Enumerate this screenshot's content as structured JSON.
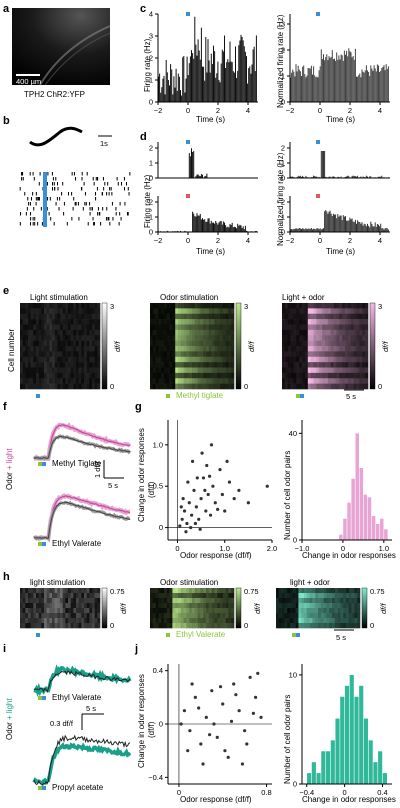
{
  "panels": {
    "a": "a",
    "b": "b",
    "c": "c",
    "d": "d",
    "e": "e",
    "f": "f",
    "g": "g",
    "h": "h",
    "i": "i",
    "j": "j"
  },
  "a": {
    "scale_bar": "400 µm",
    "caption": "TPH2 ChR2:YFP"
  },
  "b": {
    "scale_bar": "1s"
  },
  "c": {
    "left_ylabel": "Firing rate (Hz)",
    "right_ylabel": "Normalized firing rate (Hz)",
    "xlabel": "Time (s)",
    "left_yticks": [
      "0",
      "1",
      "2",
      "3",
      "4"
    ],
    "right_yticks": [
      "0",
      "1",
      "2",
      "3"
    ],
    "xticks": [
      "−2",
      "0",
      "2",
      "4"
    ]
  },
  "d": {
    "left_ylabel": "Firing rate (Hz)",
    "right_ylabel": "Normalized firing rate (Hz)",
    "xlabel": "Time (s)",
    "yticks_top": [
      "0",
      "1",
      "2"
    ],
    "yticks_bottom": [
      "0",
      "1",
      "2"
    ],
    "xticks": [
      "−2",
      "0",
      "2",
      "4"
    ]
  },
  "e": {
    "ylabel": "Cell number",
    "titles": [
      "Light stimulation",
      "Odor stimulation",
      "Light + odor"
    ],
    "odor": "Methyl tiglate",
    "cb_max": "3",
    "cb_min": "0",
    "cb_label": "df/f",
    "scale": "5 s"
  },
  "f": {
    "side_label_odor": "Odor",
    "side_label_plus": " + light",
    "odors": [
      "Methyl Tiglate",
      "Ethyl Valerate"
    ],
    "scale_y": "1 df/f",
    "scale_x": "5 s"
  },
  "g": {
    "scatter": {
      "ylabel_1": "Change in odor responses",
      "ylabel_2": "(df/f)",
      "xlabel": "Odor response (df/f)",
      "xticks": [
        "0",
        "1.0",
        "2.0"
      ],
      "yticks": [
        "0",
        "0.5",
        "1.0"
      ]
    },
    "hist": {
      "ylabel": "Number of cell odor pairs",
      "xlabel": "Change in odor responses",
      "xticks": [
        "−1.0",
        "0",
        "1.0"
      ],
      "yticks": [
        "0",
        "40"
      ]
    }
  },
  "h": {
    "titles": [
      "light stimulation",
      "Odor stimulation",
      "light + odor"
    ],
    "odor": "Ethyl Valerate",
    "cb_max": "0.75",
    "cb_min": "0",
    "cb_label": "df/f",
    "scale": "5 s"
  },
  "i": {
    "side_label_odor": "Odor",
    "side_label_plus": " + light",
    "odors": [
      "Ethyl Valerate",
      "Propyl acetate"
    ],
    "scale_y": "0.3 df/f",
    "scale_x": "5 s"
  },
  "j": {
    "scatter": {
      "ylabel_1": "Change in odor responses",
      "ylabel_2": "(df/f)",
      "xlabel": "Odor response (df/f)",
      "xticks": [
        "0",
        "0.8"
      ],
      "yticks": [
        "−0.4",
        "0",
        "0.4"
      ]
    },
    "hist": {
      "ylabel": "Number of cell odor pairs",
      "xlabel": "Change in odor responses",
      "xticks": [
        "−0.4",
        "0",
        "0.4"
      ],
      "yticks": [
        "0",
        "10"
      ]
    }
  },
  "colors": {
    "light_blue": "#3a8fd9",
    "odor_green": "#8cc63e",
    "pink": "#c64a9c",
    "teal": "#1aa08a",
    "odor_red": "#e05a5a"
  },
  "chart_data": [
    {
      "type": "bar",
      "panel": "g",
      "xlabel": "Change in odor responses",
      "ylabel": "Number of cell odor pairs",
      "x": [
        -0.05,
        0.05,
        0.15,
        0.25,
        0.35,
        0.45,
        0.55,
        0.65,
        0.75,
        0.85,
        0.95,
        1.05
      ],
      "values": [
        2,
        8,
        14,
        23,
        40,
        27,
        17,
        16,
        9,
        6,
        8,
        4
      ],
      "xlim": [
        -1.0,
        1.2
      ],
      "ylim": [
        0,
        45
      ]
    },
    {
      "type": "bar",
      "panel": "j",
      "xlabel": "Change in odor responses",
      "ylabel": "Number of cell odor pairs",
      "x": [
        -0.375,
        -0.325,
        -0.275,
        -0.225,
        -0.175,
        -0.125,
        -0.075,
        -0.025,
        0.025,
        0.075,
        0.125,
        0.175,
        0.225,
        0.275,
        0.325,
        0.375,
        0.425
      ],
      "values": [
        1,
        2,
        1,
        3,
        3,
        4,
        6,
        8,
        9,
        10,
        8,
        9,
        6,
        4,
        2,
        3,
        1
      ],
      "xlim": [
        -0.45,
        0.5
      ],
      "ylim": [
        0,
        11
      ]
    },
    {
      "type": "scatter",
      "panel": "g",
      "xlabel": "Odor response (df/f)",
      "ylabel": "Change in odor responses (df/f)",
      "points": [
        [
          0.05,
          0.02
        ],
        [
          0.1,
          0.1
        ],
        [
          0.15,
          0.2
        ],
        [
          0.2,
          0.05
        ],
        [
          0.25,
          0.3
        ],
        [
          0.3,
          0.15
        ],
        [
          0.35,
          0.45
        ],
        [
          0.4,
          0.25
        ],
        [
          0.45,
          0.1
        ],
        [
          0.5,
          0.35
        ],
        [
          0.55,
          0.6
        ],
        [
          0.6,
          0.2
        ],
        [
          0.65,
          0.4
        ],
        [
          0.7,
          0.15
        ],
        [
          0.75,
          0.5
        ],
        [
          0.8,
          0.3
        ],
        [
          0.9,
          0.7
        ],
        [
          0.95,
          0.4
        ],
        [
          1.0,
          0.2
        ],
        [
          1.1,
          0.55
        ],
        [
          1.2,
          0.35
        ],
        [
          1.3,
          0.45
        ],
        [
          1.5,
          0.3
        ],
        [
          1.9,
          0.5
        ],
        [
          0.12,
          0.35
        ],
        [
          0.22,
          0.55
        ],
        [
          0.32,
          0.8
        ],
        [
          0.42,
          0.6
        ],
        [
          0.52,
          0.9
        ],
        [
          0.62,
          0.75
        ],
        [
          0.72,
          1.0
        ],
        [
          0.18,
          -0.05
        ],
        [
          0.28,
          0.0
        ],
        [
          0.38,
          0.05
        ],
        [
          0.48,
          -0.02
        ],
        [
          0.08,
          0.25
        ],
        [
          0.58,
          0.45
        ],
        [
          0.68,
          0.62
        ],
        [
          0.85,
          0.22
        ],
        [
          1.05,
          0.8
        ]
      ],
      "xlim": [
        -0.2,
        2.0
      ],
      "ylim": [
        -0.15,
        1.3
      ]
    },
    {
      "type": "scatter",
      "panel": "j",
      "xlabel": "Odor response (df/f)",
      "ylabel": "Change in odor responses (df/f)",
      "points": [
        [
          0.05,
          0.1
        ],
        [
          0.1,
          -0.05
        ],
        [
          0.15,
          0.2
        ],
        [
          0.2,
          -0.15
        ],
        [
          0.25,
          0.05
        ],
        [
          0.3,
          0.25
        ],
        [
          0.35,
          -0.1
        ],
        [
          0.4,
          0.15
        ],
        [
          0.45,
          -0.25
        ],
        [
          0.5,
          0.3
        ],
        [
          0.55,
          0.1
        ],
        [
          0.6,
          -0.05
        ],
        [
          0.65,
          0.35
        ],
        [
          0.7,
          0.2
        ],
        [
          0.75,
          0.05
        ],
        [
          0.12,
          0.3
        ],
        [
          0.22,
          -0.3
        ],
        [
          0.32,
          0.0
        ],
        [
          0.42,
          -0.2
        ],
        [
          0.52,
          0.22
        ],
        [
          0.62,
          -0.15
        ],
        [
          0.72,
          0.38
        ],
        [
          0.08,
          -0.2
        ],
        [
          0.18,
          0.12
        ],
        [
          0.28,
          -0.08
        ],
        [
          0.38,
          0.28
        ],
        [
          0.48,
          0.02
        ],
        [
          0.58,
          -0.3
        ],
        [
          0.68,
          0.08
        ],
        [
          0.02,
          0.0
        ]
      ],
      "xlim": [
        -0.1,
        0.85
      ],
      "ylim": [
        -0.45,
        0.45
      ]
    }
  ]
}
